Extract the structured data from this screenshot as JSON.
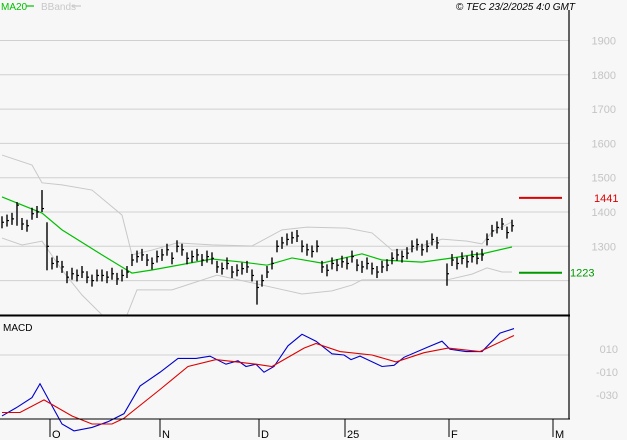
{
  "header": {
    "legend": [
      {
        "label": "MA20",
        "color": "#00c000"
      },
      {
        "label": "BBands",
        "color": "#c8c8c8"
      }
    ],
    "copyright": "© TEC 23/2/2025 4:0 GMT"
  },
  "chart_data": [
    {
      "type": "ohlc",
      "title": "Price",
      "ylim": [
        1100,
        1950
      ],
      "yticks": [
        1300,
        1400,
        1500,
        1600,
        1700,
        1800,
        1900
      ],
      "ytick_labels": [
        "1300",
        "1400",
        "1500",
        "1600",
        "1700",
        "1800",
        "1900"
      ],
      "grid": true,
      "bar_range": 35,
      "close": [
        1370,
        1375,
        1380,
        1420,
        1365,
        1360,
        1395,
        1400,
        1410,
        1300,
        1250,
        1255,
        1240,
        1210,
        1220,
        1215,
        1225,
        1210,
        1200,
        1215,
        1215,
        1210,
        1220,
        1205,
        1215,
        1225,
        1260,
        1270,
        1275,
        1260,
        1250,
        1270,
        1275,
        1290,
        1265,
        1300,
        1290,
        1265,
        1270,
        1275,
        1260,
        1270,
        1265,
        1240,
        1235,
        1250,
        1225,
        1230,
        1235,
        1240,
        1215,
        1180,
        1200,
        1225,
        1250,
        1300,
        1310,
        1320,
        1325,
        1330,
        1300,
        1290,
        1285,
        1300,
        1240,
        1230,
        1250,
        1245,
        1255,
        1250,
        1270,
        1245,
        1240,
        1250,
        1235,
        1225,
        1240,
        1245,
        1265,
        1275,
        1270,
        1280,
        1300,
        1305,
        1290,
        1300,
        1320,
        1310,
        null,
        1220,
        1260,
        1250,
        1265,
        1255,
        1270,
        1265,
        1275,
        1320,
        1345,
        1355,
        1365,
        1340,
        1360
      ],
      "spikes": {
        "3": [
          1429,
          1360
        ],
        "8": [
          1464,
          1400
        ],
        "9": [
          1370,
          1230
        ],
        "51": [
          1200,
          1130
        ],
        "89": [
          1250,
          1185
        ]
      },
      "ma20": [
        [
          0,
          1444
        ],
        [
          8,
          1397
        ],
        [
          12,
          1348
        ],
        [
          20,
          1275
        ],
        [
          26,
          1222
        ],
        [
          30,
          1231
        ],
        [
          42,
          1263
        ],
        [
          48,
          1254
        ],
        [
          53,
          1245
        ],
        [
          58,
          1266
        ],
        [
          64,
          1251
        ],
        [
          72,
          1278
        ],
        [
          76,
          1260
        ],
        [
          84,
          1254
        ],
        [
          90,
          1266
        ],
        [
          94,
          1275
        ],
        [
          96,
          1278
        ],
        [
          102,
          1298
        ]
      ],
      "bband_upper": [
        [
          0,
          1566
        ],
        [
          6,
          1537
        ],
        [
          8,
          1485
        ],
        [
          12,
          1479
        ],
        [
          18,
          1464
        ],
        [
          24,
          1391
        ],
        [
          26,
          1275
        ],
        [
          30,
          1289
        ],
        [
          35,
          1310
        ],
        [
          42,
          1304
        ],
        [
          50,
          1301
        ],
        [
          56,
          1348
        ],
        [
          61,
          1356
        ],
        [
          69,
          1353
        ],
        [
          74,
          1339
        ],
        [
          78,
          1289
        ],
        [
          82,
          1292
        ],
        [
          88,
          1321
        ],
        [
          93,
          1315
        ],
        [
          96,
          1307
        ],
        [
          98,
          1342
        ],
        [
          102,
          1371
        ]
      ],
      "bband_lower": [
        [
          0,
          1324
        ],
        [
          4,
          1304
        ],
        [
          8,
          1315
        ],
        [
          12,
          1231
        ],
        [
          16,
          1158
        ],
        [
          20,
          1100
        ],
        [
          25,
          1100
        ],
        [
          27,
          1173
        ],
        [
          34,
          1173
        ],
        [
          43,
          1216
        ],
        [
          52,
          1187
        ],
        [
          60,
          1161
        ],
        [
          66,
          1170
        ],
        [
          70,
          1187
        ],
        [
          72,
          1202
        ],
        [
          89,
          1202
        ],
        [
          94,
          1219
        ],
        [
          97,
          1237
        ],
        [
          100,
          1225
        ],
        [
          102,
          1225
        ]
      ],
      "markers": [
        {
          "label": "1441",
          "value": 1441,
          "color": "#dd0000"
        },
        {
          "label": "1223",
          "value": 1223,
          "color": "#009900"
        }
      ]
    },
    {
      "type": "line",
      "title": "MACD",
      "ylim": [
        -0.65,
        0.45
      ],
      "yticks": [
        0.1,
        -0.1,
        -0.3
      ],
      "ytick_labels": [
        "010",
        "-010",
        "-030"
      ],
      "series": [
        {
          "name": "MACD",
          "color": "#0000cc",
          "points": [
            [
              0,
              -0.43
            ],
            [
              2.8,
              -0.36
            ],
            [
              6,
              -0.27
            ],
            [
              7.6,
              -0.15
            ],
            [
              9.6,
              -0.31
            ],
            [
              12,
              -0.5
            ],
            [
              14.4,
              -0.56
            ],
            [
              18,
              -0.53
            ],
            [
              21.2,
              -0.48
            ],
            [
              24.4,
              -0.41
            ],
            [
              27.6,
              -0.17
            ],
            [
              31.6,
              -0.05
            ],
            [
              35.2,
              0.07
            ],
            [
              38.8,
              0.07
            ],
            [
              41.6,
              0.09
            ],
            [
              44.8,
              0.02
            ],
            [
              47.2,
              0.05
            ],
            [
              48.8,
              0
            ],
            [
              50.8,
              0.02
            ],
            [
              52.4,
              -0.05
            ],
            [
              54.4,
              0
            ],
            [
              57.2,
              0.18
            ],
            [
              60,
              0.28
            ],
            [
              62.8,
              0.22
            ],
            [
              66,
              0.11
            ],
            [
              68.4,
              0.1
            ],
            [
              69.8,
              0.06
            ],
            [
              71.6,
              0.09
            ],
            [
              76,
              0
            ],
            [
              78.4,
              0.01
            ],
            [
              80.4,
              0.08
            ],
            [
              85.2,
              0.17
            ],
            [
              88,
              0.22
            ],
            [
              89.6,
              0.15
            ],
            [
              92.8,
              0.13
            ],
            [
              96,
              0.13
            ],
            [
              99.6,
              0.29
            ],
            [
              102.4,
              0.33
            ]
          ]
        },
        {
          "name": "Signal",
          "color": "#dd0000",
          "points": [
            [
              0,
              -0.4
            ],
            [
              3.6,
              -0.4
            ],
            [
              8.4,
              -0.29
            ],
            [
              14,
              -0.43
            ],
            [
              18,
              -0.5
            ],
            [
              22,
              -0.5
            ],
            [
              24.4,
              -0.45
            ],
            [
              31.6,
              -0.2
            ],
            [
              37.2,
              0
            ],
            [
              42.8,
              0.06
            ],
            [
              50.8,
              0.02
            ],
            [
              54,
              0
            ],
            [
              60.4,
              0.16
            ],
            [
              62.8,
              0.2
            ],
            [
              67.6,
              0.13
            ],
            [
              74,
              0.1
            ],
            [
              78.8,
              0.04
            ],
            [
              84.4,
              0.12
            ],
            [
              89.2,
              0.16
            ],
            [
              95.6,
              0.13
            ],
            [
              102.4,
              0.27
            ]
          ]
        }
      ]
    }
  ],
  "x_axis": {
    "ticks": [
      {
        "label": "O",
        "bar": 9.6
      },
      {
        "label": "N",
        "bar": 31.6
      },
      {
        "label": "D",
        "bar": 51.4
      },
      {
        "label": "25",
        "bar": 68.6
      },
      {
        "label": "F",
        "bar": 89.4
      },
      {
        "label": "M",
        "bar": 110.2
      }
    ]
  }
}
